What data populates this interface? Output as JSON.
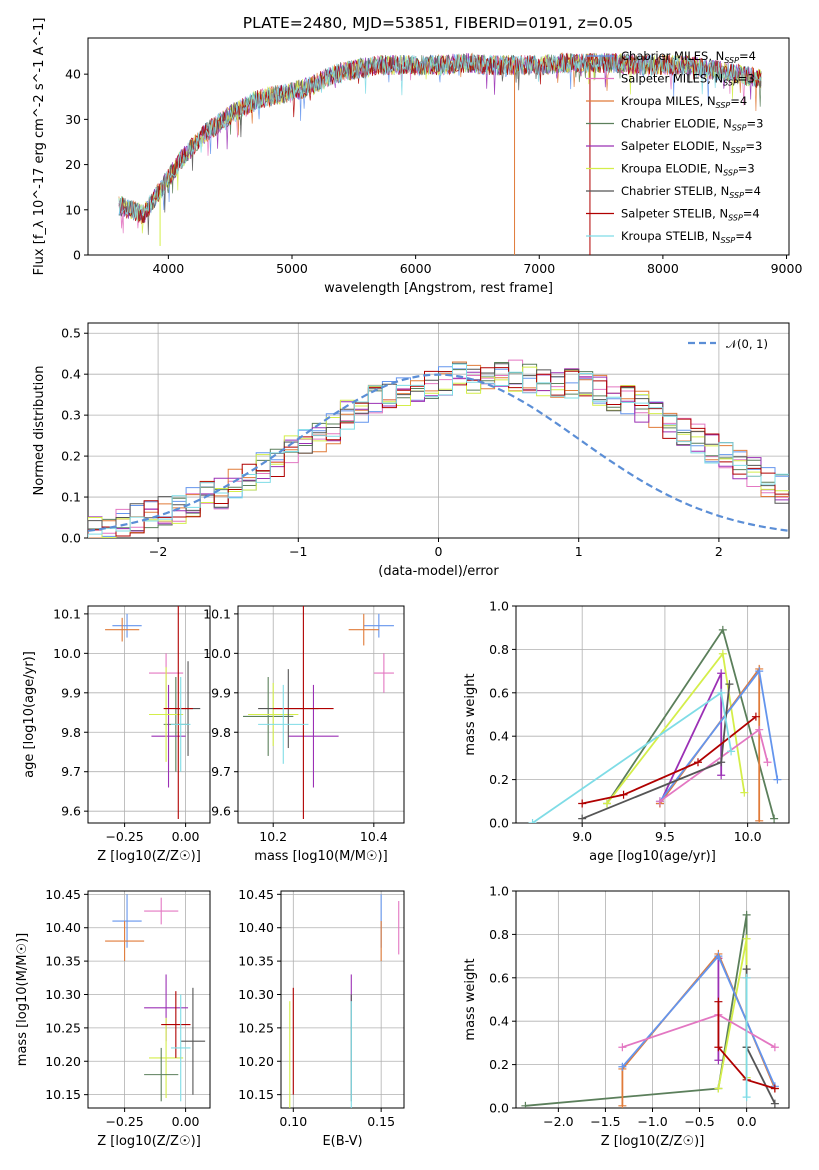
{
  "title": "PLATE=2480, MJD=53851, FIBERID=0191, z=0.05",
  "colors": {
    "Chabrier MILES": "#6495ed",
    "Salpeter MILES": "#e377c2",
    "Kroupa MILES": "#e07b39",
    "Chabrier ELODIE": "#5b7f5b",
    "Salpeter ELODIE": "#9b30b5",
    "Kroupa ELODIE": "#d4ee4a",
    "Chabrier STELIB": "#555555",
    "Salpeter STELIB": "#b00000",
    "Kroupa STELIB": "#7fdce6",
    "gaussian": "#5b8ed6"
  },
  "chart_data": [
    {
      "type": "line",
      "id": "spectrum",
      "xlabel": "wavelength [Angstrom, rest frame]",
      "ylabel": "Flux [f_λ 10^-17 erg cm^-2 s^-1 A^-1]",
      "xlim": [
        3350,
        9020
      ],
      "ylim": [
        0,
        48
      ],
      "xticks": [
        "4000",
        "5000",
        "6000",
        "7000",
        "8000",
        "9000"
      ],
      "yticks": [
        "0",
        "10",
        "20",
        "30",
        "40"
      ],
      "legend": [
        {
          "name": "Chabrier MILES",
          "n_ssp": "4"
        },
        {
          "name": "Salpeter MILES",
          "n_ssp": "3"
        },
        {
          "name": "Kroupa MILES",
          "n_ssp": "4"
        },
        {
          "name": "Chabrier ELODIE",
          "n_ssp": "3"
        },
        {
          "name": "Salpeter ELODIE",
          "n_ssp": "3"
        },
        {
          "name": "Kroupa ELODIE",
          "n_ssp": "3"
        },
        {
          "name": "Chabrier STELIB",
          "n_ssp": "4"
        },
        {
          "name": "Salpeter STELIB",
          "n_ssp": "4"
        },
        {
          "name": "Kroupa STELIB",
          "n_ssp": "4"
        }
      ],
      "legend_placement": "right",
      "continuum": {
        "x": [
          3600,
          3700,
          3800,
          3900,
          4000,
          4100,
          4200,
          4300,
          4400,
          4500,
          4600,
          4700,
          4800,
          4900,
          5000,
          5100,
          5200,
          5300,
          5400,
          5500,
          5600,
          5700,
          5800,
          5900,
          6000,
          6200,
          6400,
          6600,
          6800,
          7000,
          7200,
          7400,
          7600,
          7800,
          8000,
          8200,
          8400,
          8600,
          8800
        ],
        "y": [
          11,
          10,
          9,
          13,
          17,
          21,
          24,
          27,
          29,
          31,
          32.5,
          34,
          35,
          35.5,
          36,
          37,
          38,
          39.5,
          40.5,
          41,
          41.5,
          42,
          42,
          42,
          42,
          42,
          42.5,
          42,
          42,
          42,
          42.5,
          42.5,
          42.5,
          42,
          42,
          42,
          41,
          40,
          39
        ]
      },
      "absorption_dips": [
        {
          "x": 3933,
          "y": 2
        },
        {
          "x": 6800,
          "y": 0
        },
        {
          "x": 7410,
          "y": 0
        }
      ]
    },
    {
      "type": "histogram",
      "id": "residuals",
      "xlabel": "(data-model)/error",
      "ylabel": "Normed distribution",
      "xlim": [
        -2.5,
        2.5
      ],
      "ylim": [
        0,
        0.525
      ],
      "xticks": [
        "−2",
        "−1",
        "0",
        "1",
        "2"
      ],
      "yticks": [
        "0.0",
        "0.1",
        "0.2",
        "0.3",
        "0.4",
        "0.5"
      ],
      "grid": true,
      "legend_placement": "top-right",
      "gaussian_label": "𝒩(0, 1)",
      "bins": {
        "start": -2.5,
        "width": 0.1
      },
      "envelope": [
        0.02,
        0.03,
        0.04,
        0.045,
        0.055,
        0.065,
        0.075,
        0.085,
        0.1,
        0.11,
        0.13,
        0.15,
        0.17,
        0.19,
        0.21,
        0.23,
        0.25,
        0.27,
        0.3,
        0.32,
        0.34,
        0.35,
        0.36,
        0.37,
        0.38,
        0.385,
        0.39,
        0.39,
        0.395,
        0.395,
        0.395,
        0.39,
        0.385,
        0.38,
        0.375,
        0.37,
        0.36,
        0.35,
        0.34,
        0.32,
        0.3,
        0.28,
        0.26,
        0.24,
        0.22,
        0.2,
        0.18,
        0.16,
        0.14,
        0.12
      ]
    },
    {
      "type": "scatter",
      "id": "age-vs-z",
      "xlabel": "Z [log10(Z/Z☉)]",
      "ylabel": "age [log10(age/yr)]",
      "xlim": [
        -0.4,
        0.1
      ],
      "ylim": [
        9.57,
        10.12
      ],
      "xticks": [
        "−0.25",
        "0.00"
      ],
      "yticks": [
        "9.6",
        "9.7",
        "9.8",
        "9.9",
        "10.0",
        "10.1"
      ],
      "points": [
        {
          "series": "Chabrier MILES",
          "x": -0.24,
          "y": 10.07,
          "xerr": 0.06,
          "yerr": 0.03
        },
        {
          "series": "Kroupa MILES",
          "x": -0.26,
          "y": 10.06,
          "xerr": 0.07,
          "yerr": 0.03
        },
        {
          "series": "Salpeter MILES",
          "x": -0.08,
          "y": 9.95,
          "xerr": 0.07,
          "yerr": 0.05
        },
        {
          "series": "Chabrier ELODIE",
          "x": -0.04,
          "y": 9.82,
          "xerr": 0.05,
          "yerr": 0.12
        },
        {
          "series": "Salpeter ELODIE",
          "x": -0.07,
          "y": 9.79,
          "xerr": 0.07,
          "yerr": 0.13
        },
        {
          "series": "Kroupa ELODIE",
          "x": -0.08,
          "y": 9.845,
          "xerr": 0.07,
          "yerr": 0.12
        },
        {
          "series": "Chabrier STELIB",
          "x": 0.01,
          "y": 9.86,
          "xerr": 0.05,
          "yerr": 0.12
        },
        {
          "series": "Salpeter STELIB",
          "x": -0.03,
          "y": 9.86,
          "xerr": 0.06,
          "yerr": 0.28
        },
        {
          "series": "Kroupa STELIB",
          "x": -0.02,
          "y": 9.82,
          "xerr": 0.04,
          "yerr": 0.12
        }
      ]
    },
    {
      "type": "scatter",
      "id": "age-vs-mass",
      "xlabel": "mass [log10(M/M☉)]",
      "ylabel": "",
      "xlim": [
        10.13,
        10.46
      ],
      "ylim": [
        9.57,
        10.12
      ],
      "xticks": [
        "10.2",
        "10.4"
      ],
      "yticks": [
        "9.6",
        "9.7",
        "9.8",
        "9.9",
        "10.0",
        "10.1"
      ],
      "points": [
        {
          "series": "Chabrier MILES",
          "x": 10.41,
          "y": 10.07,
          "xerr": 0.03,
          "yerr": 0.03
        },
        {
          "series": "Kroupa MILES",
          "x": 10.38,
          "y": 10.06,
          "xerr": 0.03,
          "yerr": 0.04
        },
        {
          "series": "Salpeter MILES",
          "x": 10.42,
          "y": 9.95,
          "xerr": 0.02,
          "yerr": 0.05
        },
        {
          "series": "Chabrier ELODIE",
          "x": 10.19,
          "y": 9.84,
          "xerr": 0.05,
          "yerr": 0.1
        },
        {
          "series": "Salpeter ELODIE",
          "x": 10.28,
          "y": 9.79,
          "xerr": 0.05,
          "yerr": 0.13
        },
        {
          "series": "Kroupa ELODIE",
          "x": 10.2,
          "y": 9.845,
          "xerr": 0.05,
          "yerr": 0.08
        },
        {
          "series": "Chabrier STELIB",
          "x": 10.23,
          "y": 9.86,
          "xerr": 0.06,
          "yerr": 0.1
        },
        {
          "series": "Salpeter STELIB",
          "x": 10.26,
          "y": 9.86,
          "xerr": 0.06,
          "yerr": 0.28
        },
        {
          "series": "Kroupa STELIB",
          "x": 10.22,
          "y": 9.82,
          "xerr": 0.05,
          "yerr": 0.1
        }
      ]
    },
    {
      "type": "line",
      "id": "mass-weight-vs-age",
      "xlabel": "age [log10(age/yr)]",
      "ylabel": "mass weight",
      "xlim": [
        8.6,
        10.25
      ],
      "ylim": [
        0,
        1
      ],
      "xticks": [
        "9.0",
        "9.5",
        "10.0"
      ],
      "yticks": [
        "0.0",
        "0.2",
        "0.4",
        "0.6",
        "0.8",
        "1.0"
      ],
      "grid": true,
      "series": [
        {
          "name": "Chabrier ELODIE",
          "x": [
            9.15,
            9.85,
            10.16
          ],
          "y": [
            0.09,
            0.89,
            0.02
          ]
        },
        {
          "name": "Kroupa ELODIE",
          "x": [
            9.15,
            9.85,
            9.98
          ],
          "y": [
            0.09,
            0.78,
            0.14
          ]
        },
        {
          "name": "Salpeter ELODIE",
          "x": [
            9.47,
            9.84,
            9.84
          ],
          "y": [
            0.09,
            0.69,
            0.22
          ]
        },
        {
          "name": "Kroupa MILES",
          "x": [
            9.47,
            10.07,
            10.07
          ],
          "y": [
            0.09,
            0.71,
            0.01
          ]
        },
        {
          "name": "Chabrier MILES",
          "x": [
            9.47,
            10.07,
            10.18
          ],
          "y": [
            0.1,
            0.7,
            0.2
          ]
        },
        {
          "name": "Salpeter MILES",
          "x": [
            9.47,
            10.07,
            10.12
          ],
          "y": [
            0.1,
            0.43,
            0.28
          ]
        },
        {
          "name": "Chabrier STELIB",
          "x": [
            9.0,
            9.84,
            9.89
          ],
          "y": [
            0.02,
            0.28,
            0.64
          ]
        },
        {
          "name": "Salpeter STELIB",
          "x": [
            9.0,
            9.25,
            9.7,
            10.05
          ],
          "y": [
            0.09,
            0.13,
            0.28,
            0.49
          ]
        },
        {
          "name": "Kroupa STELIB",
          "x": [
            8.7,
            9.84,
            9.9
          ],
          "y": [
            0.0,
            0.6,
            0.33
          ]
        }
      ]
    },
    {
      "type": "scatter",
      "id": "mass-vs-z",
      "xlabel": "Z [log10(Z/Z☉)]",
      "ylabel": "mass [log10(M/M☉)]",
      "xlim": [
        -0.4,
        0.1
      ],
      "ylim": [
        10.13,
        10.455
      ],
      "xticks": [
        "−0.25",
        "0.00"
      ],
      "yticks": [
        "10.15",
        "10.20",
        "10.25",
        "10.30",
        "10.35",
        "10.40",
        "10.45"
      ],
      "points": [
        {
          "series": "Chabrier MILES",
          "x": -0.24,
          "y": 10.41,
          "xerr": 0.06,
          "yerr": 0.04
        },
        {
          "series": "Kroupa MILES",
          "x": -0.25,
          "y": 10.38,
          "xerr": 0.08,
          "yerr": 0.03
        },
        {
          "series": "Salpeter MILES",
          "x": -0.1,
          "y": 10.425,
          "xerr": 0.07,
          "yerr": 0.02
        },
        {
          "series": "Salpeter ELODIE",
          "x": -0.08,
          "y": 10.28,
          "xerr": 0.09,
          "yerr": 0.05
        },
        {
          "series": "Kroupa ELODIE",
          "x": -0.08,
          "y": 10.205,
          "xerr": 0.07,
          "yerr": 0.06
        },
        {
          "series": "Chabrier ELODIE",
          "x": -0.1,
          "y": 10.18,
          "xerr": 0.07,
          "yerr": 0.04
        },
        {
          "series": "Salpeter STELIB",
          "x": -0.04,
          "y": 10.255,
          "xerr": 0.06,
          "yerr": 0.05
        },
        {
          "series": "Chabrier STELIB",
          "x": 0.03,
          "y": 10.23,
          "xerr": 0.05,
          "yerr": 0.08
        },
        {
          "series": "Kroupa STELIB",
          "x": -0.02,
          "y": 10.22,
          "xerr": 0.04,
          "yerr": 0.08
        }
      ]
    },
    {
      "type": "scatter",
      "id": "mass-vs-ebv",
      "xlabel": "E(B-V)",
      "ylabel": "",
      "xlim": [
        0.093,
        0.163
      ],
      "ylim": [
        10.13,
        10.455
      ],
      "xticks": [
        "0.10",
        "0.15"
      ],
      "yticks": [
        "10.15",
        "10.20",
        "10.25",
        "10.30",
        "10.35",
        "10.40",
        "10.45"
      ],
      "points": [
        {
          "series": "Chabrier MILES",
          "x": 0.15,
          "y": 10.41,
          "xerr": 0,
          "yerr": 0.04
        },
        {
          "series": "Kroupa MILES",
          "x": 0.15,
          "y": 10.38,
          "xerr": 0,
          "yerr": 0.03
        },
        {
          "series": "Salpeter MILES",
          "x": 0.16,
          "y": 10.4,
          "xerr": 0,
          "yerr": 0.04
        },
        {
          "series": "Salpeter ELODIE",
          "x": 0.133,
          "y": 10.31,
          "xerr": 0,
          "yerr": 0.02
        },
        {
          "series": "Chabrier STELIB",
          "x": 0.133,
          "y": 10.22,
          "xerr": 0,
          "yerr": 0.08
        },
        {
          "series": "Kroupa STELIB",
          "x": 0.133,
          "y": 10.21,
          "xerr": 0,
          "yerr": 0.08
        },
        {
          "series": "Kroupa ELODIE",
          "x": 0.098,
          "y": 10.21,
          "xerr": 0,
          "yerr": 0.08
        },
        {
          "series": "Salpeter STELIB",
          "x": 0.1,
          "y": 10.23,
          "xerr": 0,
          "yerr": 0.08
        }
      ]
    },
    {
      "type": "line",
      "id": "mass-weight-vs-z",
      "xlabel": "Z [log10(Z/Z☉)]",
      "ylabel": "mass weight",
      "xlim": [
        -2.45,
        0.45
      ],
      "ylim": [
        0,
        1
      ],
      "xticks": [
        "−2.0",
        "−1.5",
        "−1.0",
        "−0.5",
        "0.0"
      ],
      "yticks": [
        "0.0",
        "0.2",
        "0.4",
        "0.6",
        "0.8",
        "1.0"
      ],
      "grid": true,
      "series": [
        {
          "name": "Chabrier ELODIE",
          "x": [
            -2.35,
            -0.3,
            0.0,
            0.0
          ],
          "y": [
            0.01,
            0.09,
            0.89,
            0.28
          ]
        },
        {
          "name": "Kroupa ELODIE",
          "x": [
            -0.3,
            0.0,
            0.0
          ],
          "y": [
            0.09,
            0.78,
            0.14
          ]
        },
        {
          "name": "Salpeter ELODIE",
          "x": [
            -0.3,
            -0.3
          ],
          "y": [
            0.22,
            0.69
          ]
        },
        {
          "name": "Kroupa MILES",
          "x": [
            -1.32,
            -1.32,
            -0.3,
            0.3
          ],
          "y": [
            0.01,
            0.18,
            0.71,
            0.09
          ]
        },
        {
          "name": "Chabrier MILES",
          "x": [
            -1.32,
            -0.3,
            0.3
          ],
          "y": [
            0.19,
            0.7,
            0.1
          ]
        },
        {
          "name": "Salpeter MILES",
          "x": [
            -1.32,
            -0.3,
            0.3
          ],
          "y": [
            0.28,
            0.43,
            0.28
          ]
        },
        {
          "name": "Chabrier STELIB",
          "x": [
            0.0,
            0.0,
            0.3
          ],
          "y": [
            0.64,
            0.28,
            0.02
          ]
        },
        {
          "name": "Salpeter STELIB",
          "x": [
            -0.3,
            -0.3,
            0.0,
            0.3
          ],
          "y": [
            0.49,
            0.28,
            0.13,
            0.09
          ]
        },
        {
          "name": "Kroupa STELIB",
          "x": [
            0.0,
            0.0
          ],
          "y": [
            0.6,
            0.05
          ]
        }
      ]
    }
  ]
}
